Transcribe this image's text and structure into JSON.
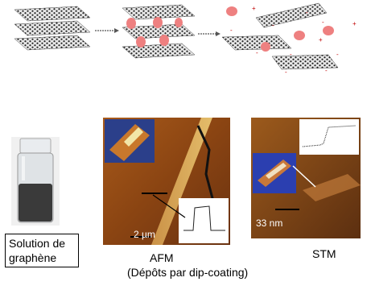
{
  "captions": {
    "solution": "Solution de graphène",
    "afm": "AFM",
    "stm": "STM",
    "depots": "(Dépôts par dip-coating)"
  },
  "scales": {
    "afm": "2 µm",
    "stm": "33 nm"
  }
}
